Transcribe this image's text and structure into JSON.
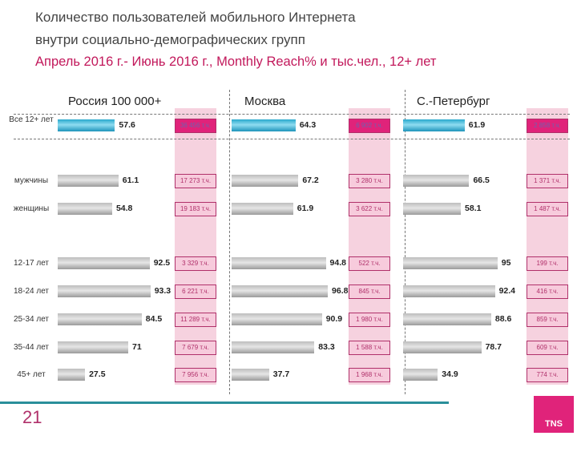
{
  "title": {
    "line1": "Количество пользователей мобильного Интернета",
    "line2": "внутри социально-демографических групп",
    "line3": "Апрель 2016 г.- Июнь 2016 г., Monthly Reach% и тыс.чел., 12+ лет"
  },
  "page_number": "21",
  "logo": "TNS",
  "colors": {
    "total_bar": "#29a9cc",
    "bar": "#b5b5b5",
    "accent": "#e0237a",
    "teal_line": "#2a8f9a"
  },
  "chart_data": {
    "type": "bar",
    "orientation": "horizontal",
    "categories": [
      "Все 12+ лет",
      "мужчины",
      "женщины",
      "12-17 лет",
      "18-24 лет",
      "25-34 лет",
      "35-44 лет",
      "45+ лет"
    ],
    "series": [
      {
        "name": "Россия 100 000+",
        "values": [
          57.6,
          61.1,
          54.8,
          92.5,
          93.3,
          84.5,
          71,
          27.5
        ],
        "counts": [
          "36 456 т.ч.",
          "17 273 т.ч.",
          "19 183 т.ч.",
          "3 329 т.ч.",
          "6 221 т.ч.",
          "11 289 т.ч.",
          "7 679 т.ч.",
          "7 956 т.ч."
        ]
      },
      {
        "name": "Москва",
        "values": [
          64.3,
          67.2,
          61.9,
          94.8,
          96.8,
          90.9,
          83.3,
          37.7
        ],
        "counts": [
          "6 902 т.ч.",
          "3 280 т.ч.",
          "3 622 т.ч.",
          "522 т.ч.",
          "845 т.ч.",
          "1 980 т.ч.",
          "1 588 т.ч.",
          "1 968 т.ч."
        ]
      },
      {
        "name": "С.-Петербург",
        "values": [
          61.9,
          66.5,
          58.1,
          95,
          92.4,
          88.6,
          78.7,
          34.9
        ],
        "counts": [
          "2 858 т.ч.",
          "1 371 т.ч.",
          "1 487 т.ч.",
          "199 т.ч.",
          "416 т.ч.",
          "859 т.ч.",
          "609 т.ч.",
          "774 т.ч."
        ]
      }
    ],
    "xlim": [
      0,
      100
    ]
  }
}
